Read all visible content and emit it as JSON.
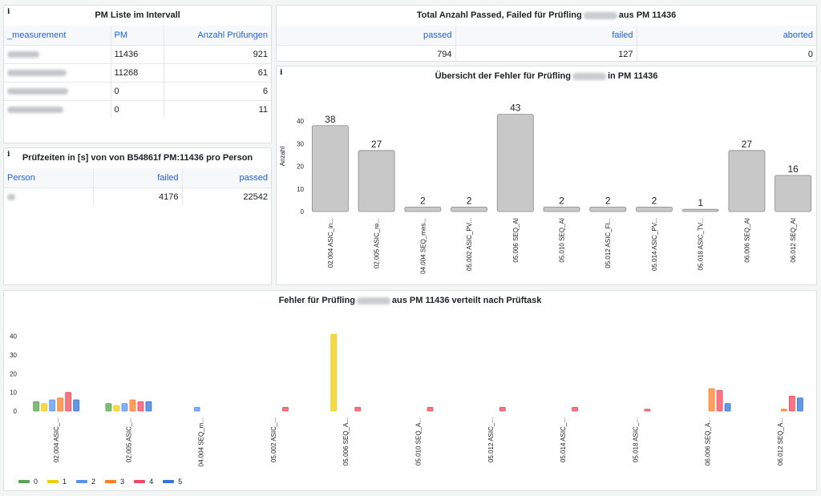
{
  "pm_list": {
    "title": "PM Liste im Intervall",
    "columns": [
      "_measurement",
      "PM",
      "Anzahl Prüfungen"
    ],
    "rows": [
      {
        "pm": "11436",
        "count": "921"
      },
      {
        "pm": "11268",
        "count": "61"
      },
      {
        "pm": "0",
        "count": "6"
      },
      {
        "pm": "0",
        "count": "11"
      }
    ]
  },
  "total": {
    "title_pre": "Total Anzahl Passed, Failed für Prüfling",
    "title_post": "aus PM 11436",
    "columns": [
      "passed",
      "failed",
      "aborted"
    ],
    "values": [
      "794",
      "127",
      "0"
    ]
  },
  "times": {
    "title": "Prüfzeiten in [s] von von B54861f PM:11436 pro Person",
    "columns": [
      "Person",
      "failed",
      "passed"
    ],
    "row": {
      "failed": "4176",
      "passed": "22542"
    }
  },
  "errors": {
    "title_pre": "Übersicht der Fehler für Prüfling",
    "title_post": "in PM 11436",
    "chart_data": {
      "type": "bar",
      "ylabel": "Anzahl",
      "ylim": [
        0,
        45
      ],
      "yticks": [
        "0",
        "10",
        "20",
        "30",
        "40"
      ],
      "categories": [
        "02.004 ASIC_in...",
        "02.005 ASIC_re...",
        "04.004 SEQ_mes...",
        "05.002 ASIC_PV...",
        "05.006 SEQ_AI",
        "05.010 SEQ_AI",
        "05.012 ASIC_Fl...",
        "05.014 ASIC_PV...",
        "05.018 ASIC_TV...",
        "06.006 SEQ_AI",
        "06.012 SEQ_AI"
      ],
      "values": [
        38,
        27,
        2,
        2,
        43,
        2,
        2,
        2,
        1,
        27,
        16
      ],
      "labels": [
        "38",
        "27",
        "2",
        "2",
        "43",
        "2",
        "2",
        "2",
        "1",
        "27",
        "16"
      ],
      "color": "#c8c8c8"
    }
  },
  "tasks": {
    "title_pre": "Fehler für Prüfling",
    "title_post": "aus PM 11436 verteilt nach Prüftask",
    "chart_data": {
      "type": "bar",
      "ylim": [
        0,
        45
      ],
      "yticks": [
        "0",
        "10",
        "20",
        "30",
        "40"
      ],
      "categories": [
        "02.004 ASIC_...",
        "02.005 ASIC_...",
        "04.004 SEQ_m...",
        "05.002 ASIC_...",
        "05.006 SEQ_A...",
        "05.010 SEQ_A...",
        "05.012 ASIC_...",
        "05.014 ASIC_...",
        "05.018 ASIC_...",
        "06.006 SEQ_A...",
        "06.012 SEQ_A..."
      ],
      "series": [
        {
          "name": "0",
          "color": "#56a64b",
          "values": [
            5,
            4,
            0,
            0,
            0,
            0,
            0,
            0,
            0,
            0,
            0
          ]
        },
        {
          "name": "1",
          "color": "#f2cc0c",
          "values": [
            4,
            3,
            0,
            0,
            41,
            0,
            0,
            0,
            0,
            0,
            0
          ]
        },
        {
          "name": "2",
          "color": "#5794f2",
          "values": [
            6,
            4,
            2,
            0,
            0,
            0,
            0,
            0,
            0,
            0,
            0
          ]
        },
        {
          "name": "3",
          "color": "#ff7f28",
          "values": [
            7,
            6,
            0,
            0,
            0,
            0,
            0,
            0,
            0,
            12,
            1
          ]
        },
        {
          "name": "4",
          "color": "#f2495c",
          "values": [
            10,
            5,
            0,
            2,
            2,
            2,
            2,
            2,
            1,
            11,
            8
          ]
        },
        {
          "name": "5",
          "color": "#3274d9",
          "values": [
            6,
            5,
            0,
            0,
            0,
            0,
            0,
            0,
            0,
            4,
            7
          ]
        }
      ]
    }
  }
}
